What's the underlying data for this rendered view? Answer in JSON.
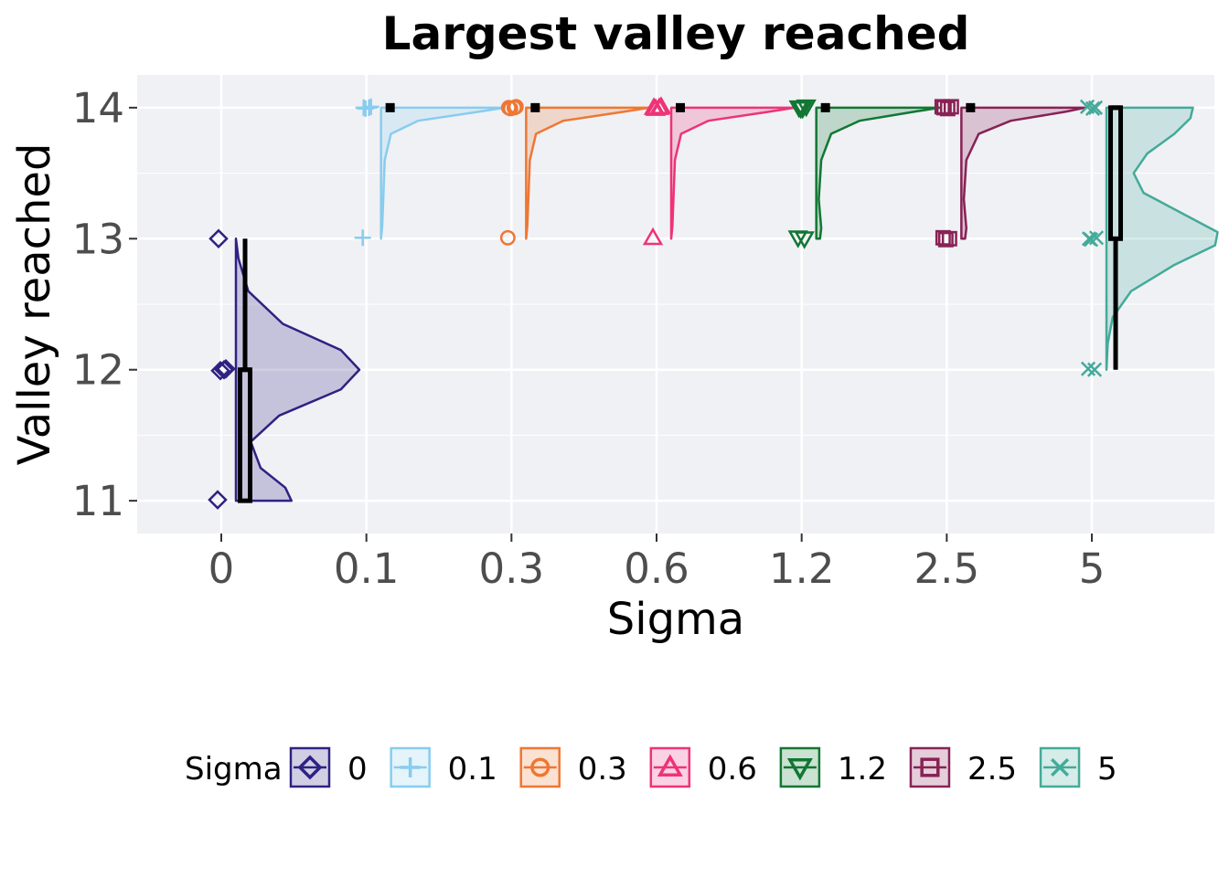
{
  "chart_data": {
    "type": "raincloud",
    "title": "Largest valley reached",
    "xlabel": "Sigma",
    "ylabel": "Valley reached",
    "categories": [
      "0",
      "0.1",
      "0.3",
      "0.6",
      "1.2",
      "2.5",
      "5"
    ],
    "ylim": [
      10.75,
      14.25
    ],
    "yticks": [
      11,
      12,
      13,
      14
    ],
    "grid": true,
    "legend": {
      "title": "Sigma",
      "position": "bottom",
      "entries": [
        "0",
        "0.1",
        "0.3",
        "0.6",
        "1.2",
        "2.5",
        "5"
      ]
    },
    "series": [
      {
        "category": "0",
        "color": "#2d2283",
        "marker": "diamond",
        "points": [
          11,
          12,
          12,
          12,
          13
        ],
        "box": {
          "min": 11,
          "q1": 11,
          "median": 12,
          "q3": 12,
          "max": 13
        },
        "density": [
          [
            11,
            0.45
          ],
          [
            11.1,
            0.4
          ],
          [
            11.25,
            0.2
          ],
          [
            11.45,
            0.12
          ],
          [
            11.65,
            0.35
          ],
          [
            11.85,
            0.85
          ],
          [
            12,
            1.0
          ],
          [
            12.15,
            0.85
          ],
          [
            12.35,
            0.38
          ],
          [
            12.6,
            0.1
          ],
          [
            12.85,
            0.02
          ],
          [
            13,
            0.0
          ]
        ]
      },
      {
        "category": "0.1",
        "color": "#88ccee",
        "marker": "plus",
        "points": [
          13,
          14,
          14,
          14,
          14
        ],
        "box": {
          "min": 14,
          "q1": 14,
          "median": 14,
          "q3": 14,
          "max": 14
        },
        "density": [
          [
            13,
            0.0
          ],
          [
            13.1,
            0.01
          ],
          [
            13.6,
            0.03
          ],
          [
            13.8,
            0.08
          ],
          [
            13.9,
            0.3
          ],
          [
            13.97,
            0.8
          ],
          [
            14,
            1.0
          ]
        ]
      },
      {
        "category": "0.3",
        "color": "#ee7733",
        "marker": "circle",
        "points": [
          13,
          14,
          14,
          14,
          14
        ],
        "box": {
          "min": 14,
          "q1": 14,
          "median": 14,
          "q3": 14,
          "max": 14
        },
        "density": [
          [
            13,
            0.0
          ],
          [
            13.1,
            0.01
          ],
          [
            13.6,
            0.03
          ],
          [
            13.8,
            0.08
          ],
          [
            13.9,
            0.3
          ],
          [
            13.97,
            0.8
          ],
          [
            14,
            1.0
          ]
        ]
      },
      {
        "category": "0.6",
        "color": "#ee3377",
        "marker": "triangle-up",
        "points": [
          13,
          14,
          14,
          14,
          14
        ],
        "box": {
          "min": 14,
          "q1": 14,
          "median": 14,
          "q3": 14,
          "max": 14
        },
        "density": [
          [
            13,
            0.0
          ],
          [
            13.1,
            0.01
          ],
          [
            13.6,
            0.03
          ],
          [
            13.8,
            0.08
          ],
          [
            13.9,
            0.3
          ],
          [
            13.97,
            0.8
          ],
          [
            14,
            1.0
          ]
        ]
      },
      {
        "category": "1.2",
        "color": "#117733",
        "marker": "triangle-down",
        "points": [
          13,
          13,
          14,
          14,
          14,
          14
        ],
        "box": {
          "min": 14,
          "q1": 14,
          "median": 14,
          "q3": 14,
          "max": 14
        },
        "density": [
          [
            13,
            0.03
          ],
          [
            13.08,
            0.04
          ],
          [
            13.3,
            0.02
          ],
          [
            13.6,
            0.04
          ],
          [
            13.8,
            0.12
          ],
          [
            13.9,
            0.35
          ],
          [
            13.97,
            0.8
          ],
          [
            14,
            1.0
          ]
        ]
      },
      {
        "category": "2.5",
        "color": "#882255",
        "marker": "square",
        "points": [
          13,
          13,
          13,
          14,
          14,
          14,
          14
        ],
        "box": {
          "min": 14,
          "q1": 14,
          "median": 14,
          "q3": 14,
          "max": 14
        },
        "density": [
          [
            13,
            0.03
          ],
          [
            13.08,
            0.04
          ],
          [
            13.3,
            0.02
          ],
          [
            13.6,
            0.04
          ],
          [
            13.8,
            0.14
          ],
          [
            13.9,
            0.4
          ],
          [
            13.97,
            0.85
          ],
          [
            14,
            1.0
          ]
        ]
      },
      {
        "category": "5",
        "color": "#44aa99",
        "marker": "x",
        "points": [
          12,
          12,
          13,
          13,
          13,
          14,
          14,
          14
        ],
        "box": {
          "min": 12,
          "q1": 13,
          "median": 14,
          "q3": 14,
          "max": 14
        },
        "density": [
          [
            12,
            0.0
          ],
          [
            12.2,
            0.01
          ],
          [
            12.4,
            0.05
          ],
          [
            12.6,
            0.2
          ],
          [
            12.8,
            0.55
          ],
          [
            12.95,
            0.88
          ],
          [
            13.05,
            0.9
          ],
          [
            13.2,
            0.6
          ],
          [
            13.35,
            0.3
          ],
          [
            13.5,
            0.22
          ],
          [
            13.65,
            0.33
          ],
          [
            13.8,
            0.55
          ],
          [
            13.92,
            0.68
          ],
          [
            14,
            0.7
          ]
        ]
      }
    ]
  }
}
